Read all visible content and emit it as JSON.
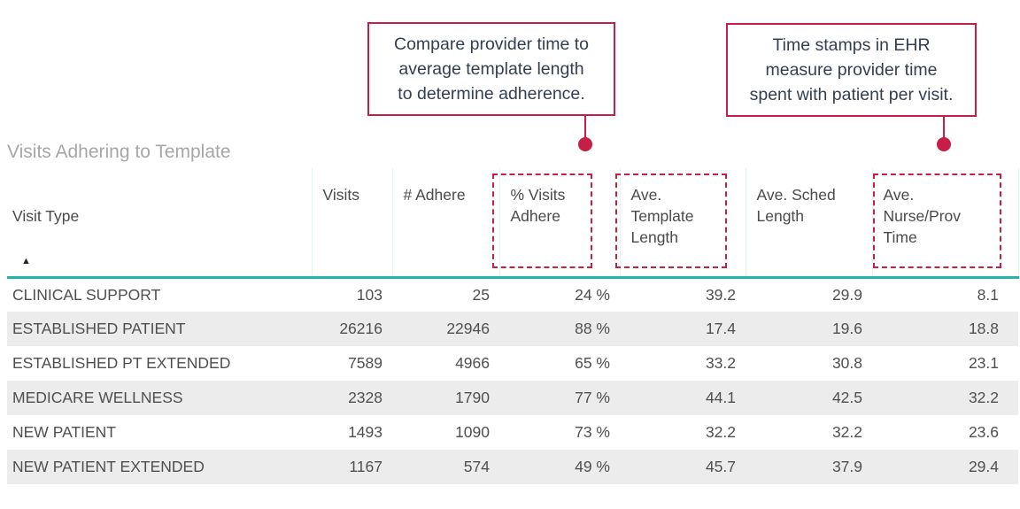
{
  "colors": {
    "annotation_red": "#C61E46",
    "table_accent_teal": "#1FB8A6",
    "row_stripe_gray": "#ECECEC",
    "title_gray": "#A6A6A6",
    "callout_text": "#333F50"
  },
  "callouts": [
    {
      "lines": [
        "Compare provider time to",
        "average template length",
        "to determine adherence."
      ]
    },
    {
      "lines": [
        "Time stamps in EHR",
        "measure provider time",
        "spent with patient per visit."
      ]
    }
  ],
  "sort_indicator": {
    "column": "Visit Type",
    "direction": "ascending"
  },
  "chart_data": {
    "type": "table",
    "title": "Visits Adhering to Template",
    "column_keys": [
      "visit-type",
      "visits",
      "num-adhere",
      "pct-visits-adhere",
      "ave-template-length",
      "ave-sched-length",
      "ave-nurse-prov-time"
    ],
    "columns": [
      {
        "label": "Visit Type"
      },
      {
        "label": "Visits"
      },
      {
        "label": "# Adhere"
      },
      {
        "label": "% Visits\nAdhere"
      },
      {
        "label": "Ave.\nTemplate\nLength"
      },
      {
        "label": "Ave. Sched\nLength"
      },
      {
        "label": "Ave.\nNurse/Prov\nTime"
      }
    ],
    "highlighted_columns": [
      "% Visits Adhere",
      "Ave. Template Length",
      "Ave. Nurse/Prov Time"
    ],
    "rows": [
      {
        "cells": [
          "CLINICAL SUPPORT",
          "103",
          "25",
          "24 %",
          "39.2",
          "29.9",
          "8.1"
        ]
      },
      {
        "cells": [
          "ESTABLISHED PATIENT",
          "26216",
          "22946",
          "88 %",
          "17.4",
          "19.6",
          "18.8"
        ]
      },
      {
        "cells": [
          "ESTABLISHED PT EXTENDED",
          "7589",
          "4966",
          "65 %",
          "33.2",
          "30.8",
          "23.1"
        ]
      },
      {
        "cells": [
          "MEDICARE WELLNESS",
          "2328",
          "1790",
          "77 %",
          "44.1",
          "42.5",
          "32.2"
        ]
      },
      {
        "cells": [
          "NEW PATIENT",
          "1493",
          "1090",
          "73 %",
          "32.2",
          "32.2",
          "23.6"
        ]
      },
      {
        "cells": [
          "NEW PATIENT EXTENDED",
          "1167",
          "574",
          "49 %",
          "45.7",
          "37.9",
          "29.4"
        ]
      }
    ]
  }
}
